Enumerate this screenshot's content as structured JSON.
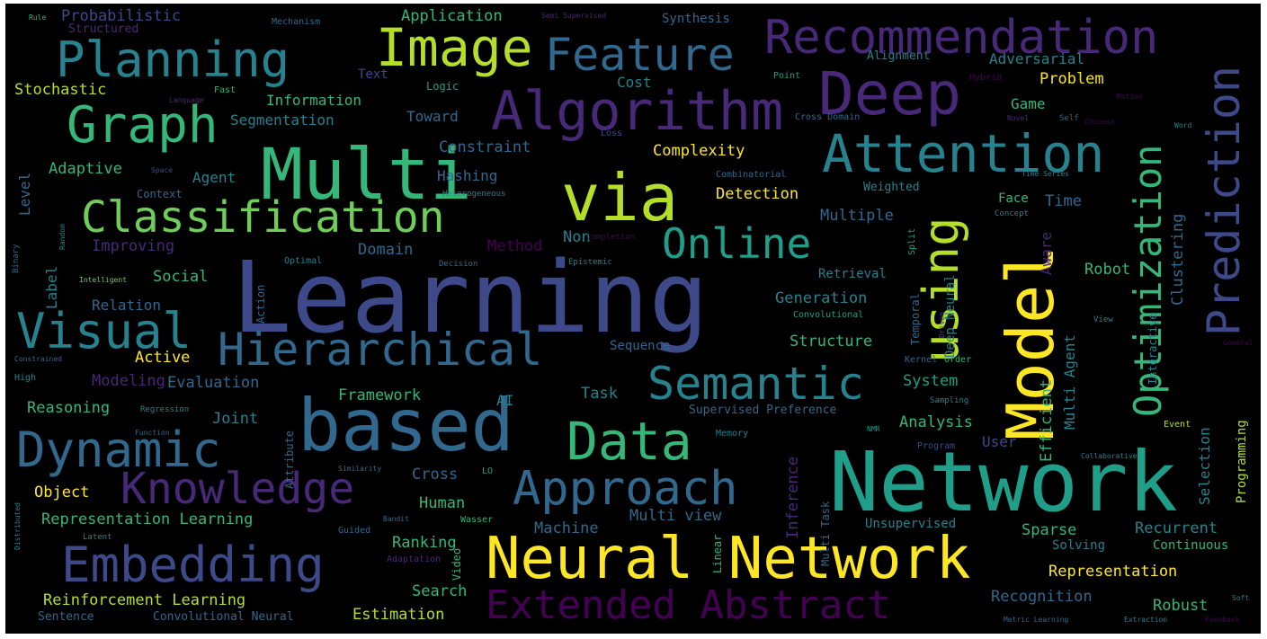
{
  "palette": {
    "dark_purple": "#440154",
    "purple": "#482878",
    "indigo": "#3e4989",
    "blue": "#31688e",
    "teal": "#26828e",
    "teal_green": "#1f9e89",
    "green": "#35b779",
    "light_green": "#6ece58",
    "yellow_green": "#b5de2b",
    "yellow": "#fde725"
  },
  "words": [
    {
      "text": "Learning",
      "color": "#3e4989"
    },
    {
      "text": "Network",
      "color": "#1f9e89"
    },
    {
      "text": "based",
      "color": "#31688e"
    },
    {
      "text": "Model",
      "color": "#fde725"
    },
    {
      "text": "Multi",
      "color": "#35b779"
    },
    {
      "text": "via",
      "color": "#b5de2b"
    },
    {
      "text": "Neural Network",
      "color": "#fde725"
    },
    {
      "text": "Deep",
      "color": "#482878"
    },
    {
      "text": "Algorithm",
      "color": "#482878"
    },
    {
      "text": "Attention",
      "color": "#26828e"
    },
    {
      "text": "Image",
      "color": "#b5de2b"
    },
    {
      "text": "Feature",
      "color": "#31688e"
    },
    {
      "text": "Recommendation",
      "color": "#482878"
    },
    {
      "text": "Planning",
      "color": "#26828e"
    },
    {
      "text": "Graph",
      "color": "#35b779"
    },
    {
      "text": "Classification",
      "color": "#6ece58"
    },
    {
      "text": "Online",
      "color": "#1f9e89"
    },
    {
      "text": "using",
      "color": "#b5de2b"
    },
    {
      "text": "Prediction",
      "color": "#3e4989"
    },
    {
      "text": "Optimization",
      "color": "#35b779"
    },
    {
      "text": "Visual",
      "color": "#26828e"
    },
    {
      "text": "Hierarchical",
      "color": "#31688e"
    },
    {
      "text": "Semantic",
      "color": "#26828e"
    },
    {
      "text": "Data",
      "color": "#35b779"
    },
    {
      "text": "Dynamic",
      "color": "#31688e"
    },
    {
      "text": "Knowledge",
      "color": "#482878"
    },
    {
      "text": "Approach",
      "color": "#31688e"
    },
    {
      "text": "Embedding",
      "color": "#3e4989"
    },
    {
      "text": "Extended Abstract",
      "color": "#440154"
    },
    {
      "text": "Probabilistic",
      "color": "#3e4989"
    },
    {
      "text": "Structured",
      "color": "#482878"
    },
    {
      "text": "Mechanism",
      "color": "#31688e"
    },
    {
      "text": "Application",
      "color": "#35b779"
    },
    {
      "text": "Semi Supervised",
      "color": "#482878"
    },
    {
      "text": "Synthesis",
      "color": "#31688e"
    },
    {
      "text": "Rule",
      "color": "#35b779"
    },
    {
      "text": "Alignment",
      "color": "#26828e"
    },
    {
      "text": "Adversarial",
      "color": "#26828e"
    },
    {
      "text": "Hybrid",
      "color": "#440154"
    },
    {
      "text": "Point",
      "color": "#1f9e89"
    },
    {
      "text": "Text",
      "color": "#3e4989"
    },
    {
      "text": "Logic",
      "color": "#1f9e89"
    },
    {
      "text": "Cost",
      "color": "#26828e"
    },
    {
      "text": "Problem",
      "color": "#fde725"
    },
    {
      "text": "Stochastic",
      "color": "#b5de2b"
    },
    {
      "text": "Language",
      "color": "#482878"
    },
    {
      "text": "Fast",
      "color": "#35b779"
    },
    {
      "text": "Information",
      "color": "#35b779"
    },
    {
      "text": "Segmentation",
      "color": "#26828e"
    },
    {
      "text": "Toward",
      "color": "#31688e"
    },
    {
      "text": "Game",
      "color": "#35b779"
    },
    {
      "text": "Cross Domain",
      "color": "#31688e"
    },
    {
      "text": "Novel",
      "color": "#482878"
    },
    {
      "text": "Self",
      "color": "#31688e"
    },
    {
      "text": "Chinese",
      "color": "#440154"
    },
    {
      "text": "Word",
      "color": "#26828e"
    },
    {
      "text": "Constraint",
      "color": "#31688e"
    },
    {
      "text": "Loss",
      "color": "#3e4989"
    },
    {
      "text": "Complexity",
      "color": "#fde725"
    },
    {
      "text": "Adaptive",
      "color": "#35b779"
    },
    {
      "text": "Space",
      "color": "#3e4989"
    },
    {
      "text": "Agent",
      "color": "#26828e"
    },
    {
      "text": "Hashing",
      "color": "#31688e"
    },
    {
      "text": "Combinatorial",
      "color": "#31688e"
    },
    {
      "text": "Time Series",
      "color": "#26828e"
    },
    {
      "text": "Context",
      "color": "#31688e"
    },
    {
      "text": "Heterogeneous",
      "color": "#26828e"
    },
    {
      "text": "Detection",
      "color": "#fde725"
    },
    {
      "text": "Weighted",
      "color": "#26828e"
    },
    {
      "text": "Face",
      "color": "#35b779"
    },
    {
      "text": "Time",
      "color": "#31688e"
    },
    {
      "text": "Concept",
      "color": "#26828e"
    },
    {
      "text": "Multiple",
      "color": "#31688e"
    },
    {
      "text": "Improving",
      "color": "#482878"
    },
    {
      "text": "Method",
      "color": "#440154"
    },
    {
      "text": "Non",
      "color": "#26828e"
    },
    {
      "text": "Completion",
      "color": "#440154"
    },
    {
      "text": "Domain",
      "color": "#31688e"
    },
    {
      "text": "Optimal",
      "color": "#26828e"
    },
    {
      "text": "Decision",
      "color": "#31688e"
    },
    {
      "text": "Epistemic",
      "color": "#26828e"
    },
    {
      "text": "Intelligent",
      "color": "#6ece58"
    },
    {
      "text": "Social",
      "color": "#35b779"
    },
    {
      "text": "Retrieval",
      "color": "#26828e"
    },
    {
      "text": "Robot",
      "color": "#35b779"
    },
    {
      "text": "Relation",
      "color": "#31688e"
    },
    {
      "text": "Generation",
      "color": "#26828e"
    },
    {
      "text": "Convolutional",
      "color": "#1f9e89"
    },
    {
      "text": "Active",
      "color": "#fde725"
    },
    {
      "text": "Structure",
      "color": "#35b779"
    },
    {
      "text": "Sequence",
      "color": "#31688e"
    },
    {
      "text": "Kernel",
      "color": "#31688e"
    },
    {
      "text": "Order",
      "color": "#35b779"
    },
    {
      "text": "View",
      "color": "#26828e"
    },
    {
      "text": "General",
      "color": "#440154"
    },
    {
      "text": "High",
      "color": "#26828e"
    },
    {
      "text": "Constrained",
      "color": "#31688e"
    },
    {
      "text": "Modeling",
      "color": "#482878"
    },
    {
      "text": "Evaluation",
      "color": "#31688e"
    },
    {
      "text": "Task",
      "color": "#26828e"
    },
    {
      "text": "System",
      "color": "#1f9e89"
    },
    {
      "text": "Sampling",
      "color": "#26828e"
    },
    {
      "text": "Framework",
      "color": "#35b779"
    },
    {
      "text": "AI",
      "color": "#26828e"
    },
    {
      "text": "Reasoning",
      "color": "#35b779"
    },
    {
      "text": "Regression",
      "color": "#26828e"
    },
    {
      "text": "Joint",
      "color": "#26828e"
    },
    {
      "text": "Supervised Preference",
      "color": "#31688e"
    },
    {
      "text": "Analysis",
      "color": "#35b779"
    },
    {
      "text": "User",
      "color": "#3e4989"
    },
    {
      "text": "Event",
      "color": "#b5de2b"
    },
    {
      "text": "Function",
      "color": "#31688e"
    },
    {
      "text": "Memory",
      "color": "#26828e"
    },
    {
      "text": "Program",
      "color": "#3e4989"
    },
    {
      "text": "Collaborative",
      "color": "#26828e"
    },
    {
      "text": "Object",
      "color": "#fde725"
    },
    {
      "text": "Cross",
      "color": "#31688e"
    },
    {
      "text": "LO",
      "color": "#1f9e89"
    },
    {
      "text": "Similarity",
      "color": "#31688e"
    },
    {
      "text": "Human",
      "color": "#35b779"
    },
    {
      "text": "Representation Learning",
      "color": "#35b779"
    },
    {
      "text": "Machine",
      "color": "#31688e"
    },
    {
      "text": "Multi view",
      "color": "#31688e"
    },
    {
      "text": "Unsupervised",
      "color": "#26828e"
    },
    {
      "text": "Recurrent",
      "color": "#26828e"
    },
    {
      "text": "Latent",
      "color": "#26828e"
    },
    {
      "text": "Guided",
      "color": "#31688e"
    },
    {
      "text": "Bandit",
      "color": "#31688e"
    },
    {
      "text": "Wasser",
      "color": "#35b779"
    },
    {
      "text": "Ranking",
      "color": "#35b779"
    },
    {
      "text": "Sparse",
      "color": "#35b779"
    },
    {
      "text": "Solving",
      "color": "#26828e"
    },
    {
      "text": "Continuous",
      "color": "#35b779"
    },
    {
      "text": "Representation",
      "color": "#fde725"
    },
    {
      "text": "Adaptation",
      "color": "#482878"
    },
    {
      "text": "Reinforcement Learning",
      "color": "#b5de2b"
    },
    {
      "text": "Search",
      "color": "#35b779"
    },
    {
      "text": "Recognition",
      "color": "#31688e"
    },
    {
      "text": "Robust",
      "color": "#35b779"
    },
    {
      "text": "Sentence",
      "color": "#31688e"
    },
    {
      "text": "Convolutional Neural",
      "color": "#31688e"
    },
    {
      "text": "Estimation",
      "color": "#b5de2b"
    },
    {
      "text": "Metric Learning",
      "color": "#31688e"
    },
    {
      "text": "Extraction",
      "color": "#26828e"
    },
    {
      "text": "Feedback",
      "color": "#440154"
    },
    {
      "text": "Soft",
      "color": "#26828e"
    },
    {
      "text": "Binary",
      "color": "#31688e"
    },
    {
      "text": "Level",
      "color": "#31688e"
    },
    {
      "text": "Label",
      "color": "#26828e"
    },
    {
      "text": "Random",
      "color": "#26828e"
    },
    {
      "text": "Action",
      "color": "#31688e"
    },
    {
      "text": "Attribute",
      "color": "#31688e"
    },
    {
      "text": "Video",
      "color": "#35b779"
    },
    {
      "text": "Inference",
      "color": "#482878"
    },
    {
      "text": "Multi Task",
      "color": "#31688e"
    },
    {
      "text": "Linear",
      "color": "#35b779"
    },
    {
      "text": "Deep Neural",
      "color": "#26828e"
    },
    {
      "text": "Temporal",
      "color": "#31688e"
    },
    {
      "text": "Aware",
      "color": "#482878"
    },
    {
      "text": "Efficient",
      "color": "#35b779"
    },
    {
      "text": "Multi Agent",
      "color": "#26828e"
    },
    {
      "text": "Interactive",
      "color": "#26828e"
    },
    {
      "text": "Selection",
      "color": "#26828e"
    },
    {
      "text": "Programming",
      "color": "#b5de2b"
    },
    {
      "text": "Clustering",
      "color": "#31688e"
    },
    {
      "text": "Split",
      "color": "#1f9e89"
    },
    {
      "text": "Driven",
      "color": "#3e4989"
    },
    {
      "text": "Distributed",
      "color": "#26828e"
    },
    {
      "text": "Motion",
      "color": "#440154"
    },
    {
      "text": "NMR",
      "color": "#1f9e89"
    }
  ]
}
